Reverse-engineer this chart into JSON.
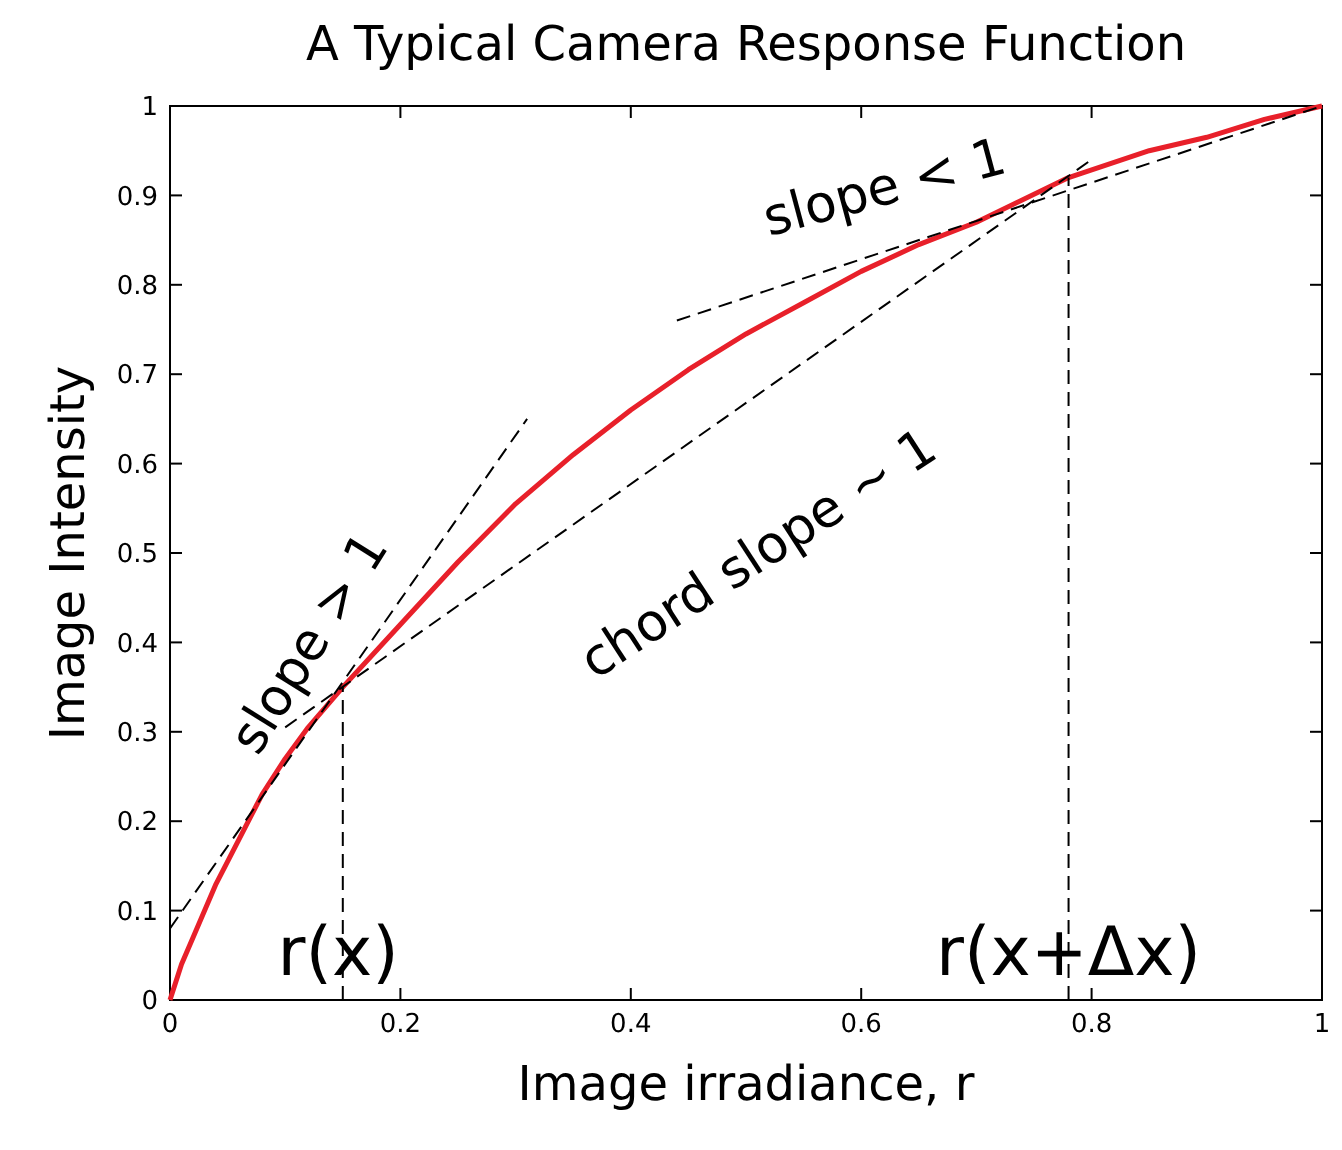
{
  "chart_data": {
    "type": "line",
    "title": "A Typical Camera Response Function",
    "xlabel": "Image irradiance, r",
    "ylabel": "Image Intensity",
    "xlim": [
      0,
      1
    ],
    "ylim": [
      0,
      1
    ],
    "xticks": [
      0,
      0.2,
      0.4,
      0.6,
      0.8,
      1
    ],
    "yticks": [
      0,
      0.1,
      0.2,
      0.3,
      0.4,
      0.5,
      0.6,
      0.7,
      0.8,
      0.9,
      1
    ],
    "grid": false,
    "series": [
      {
        "color": "#e8202a",
        "line_style": "solid",
        "x": [
          0,
          0.01,
          0.02,
          0.04,
          0.06,
          0.08,
          0.1,
          0.12,
          0.15,
          0.2,
          0.25,
          0.3,
          0.35,
          0.4,
          0.45,
          0.5,
          0.55,
          0.6,
          0.65,
          0.7,
          0.78,
          0.85,
          0.9,
          0.95,
          1
        ],
        "values": [
          0,
          0.04,
          0.07,
          0.13,
          0.18,
          0.23,
          0.27,
          0.305,
          0.35,
          0.42,
          0.49,
          0.555,
          0.61,
          0.66,
          0.705,
          0.745,
          0.78,
          0.815,
          0.845,
          0.87,
          0.92,
          0.95,
          0.965,
          0.985,
          1
        ]
      },
      {
        "color": "#000000",
        "line_style": "dashed",
        "x": [
          0,
          0.31
        ],
        "values": [
          0.08,
          0.65
        ]
      },
      {
        "color": "#000000",
        "line_style": "dashed",
        "x": [
          0.44,
          1
        ],
        "values": [
          0.76,
          1
        ]
      },
      {
        "color": "#000000",
        "line_style": "dashed",
        "x": [
          0.1,
          0.8
        ],
        "values": [
          0.305,
          0.94
        ]
      },
      {
        "color": "#000000",
        "line_style": "dashed",
        "x": [
          0.15,
          0.15
        ],
        "values": [
          0,
          0.35
        ]
      },
      {
        "color": "#000000",
        "line_style": "dashed",
        "x": [
          0.78,
          0.78
        ],
        "values": [
          0,
          0.92
        ]
      }
    ],
    "annotations": [
      "slope > 1",
      "slope < 1",
      "chord slope ~ 1",
      {
        "text": "r(x)",
        "x": 0.146,
        "y": 0.055
      },
      {
        "text": "r(x+Δx)",
        "x": 0.78,
        "y": 0.055
      }
    ]
  }
}
